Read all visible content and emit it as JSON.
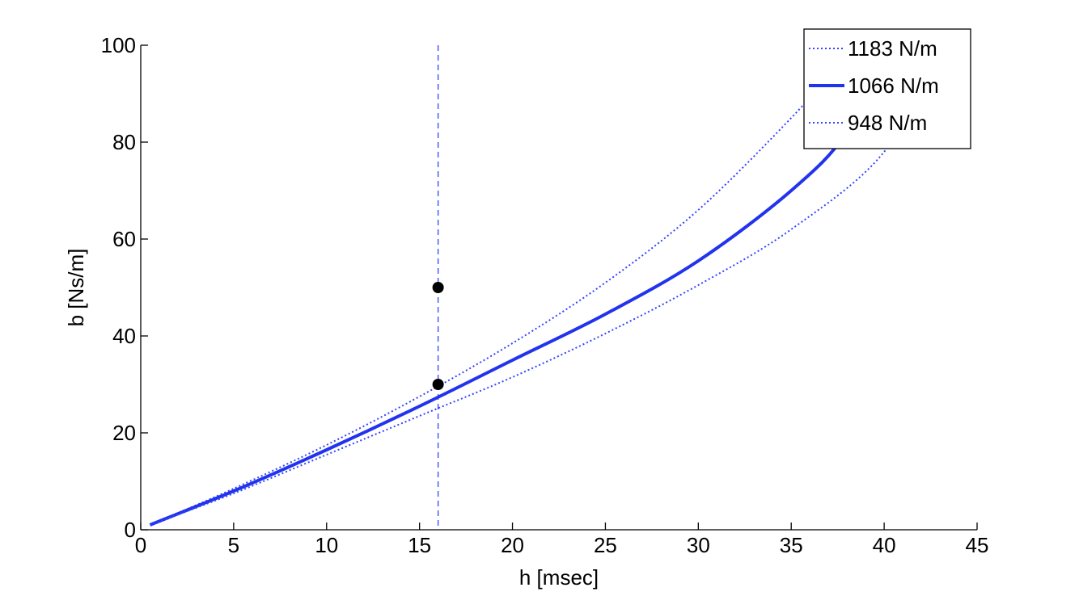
{
  "chart_data": {
    "type": "line",
    "xlabel": "h [msec]",
    "ylabel": "b [Ns/m]",
    "xlim": [
      0,
      45
    ],
    "ylim": [
      0,
      100
    ],
    "xticks": [
      0,
      5,
      10,
      15,
      20,
      25,
      30,
      35,
      40,
      45
    ],
    "yticks": [
      0,
      20,
      40,
      60,
      80,
      100
    ],
    "xtick_labels": [
      "0",
      "5",
      "10",
      "15",
      "20",
      "25",
      "30",
      "35",
      "40",
      "45"
    ],
    "ytick_labels": [
      "0",
      "20",
      "40",
      "60",
      "80",
      "100"
    ],
    "grid": false,
    "legend_position": "top-right",
    "series": [
      {
        "name": "1183 N/m",
        "style": "dotted",
        "color": "#3344ff",
        "x": [
          0.5,
          5,
          10,
          15,
          20,
          25,
          30,
          35,
          37,
          38
        ],
        "y": [
          1,
          8.5,
          17.5,
          27.5,
          38.5,
          51,
          66,
          85,
          94,
          100
        ]
      },
      {
        "name": "1066 N/m",
        "style": "solid",
        "color": "#2233ee",
        "x": [
          0.5,
          5,
          10,
          15,
          20,
          25,
          30,
          35,
          38,
          40.5
        ],
        "y": [
          1,
          8,
          16.5,
          25.5,
          35,
          44.5,
          55.5,
          70,
          82,
          100
        ]
      },
      {
        "name": "948 N/m",
        "style": "dotted",
        "color": "#3344ff",
        "x": [
          0.5,
          5,
          10,
          15,
          20,
          25,
          30,
          35,
          40,
          43
        ],
        "y": [
          1,
          7.5,
          15.5,
          23.5,
          31.5,
          40.5,
          50.5,
          62,
          78,
          100
        ]
      }
    ],
    "points": [
      {
        "x": 16,
        "y": 50
      },
      {
        "x": 16,
        "y": 30
      }
    ],
    "vline": {
      "x": 16,
      "style": "dashed",
      "color": "#3344ff"
    }
  }
}
